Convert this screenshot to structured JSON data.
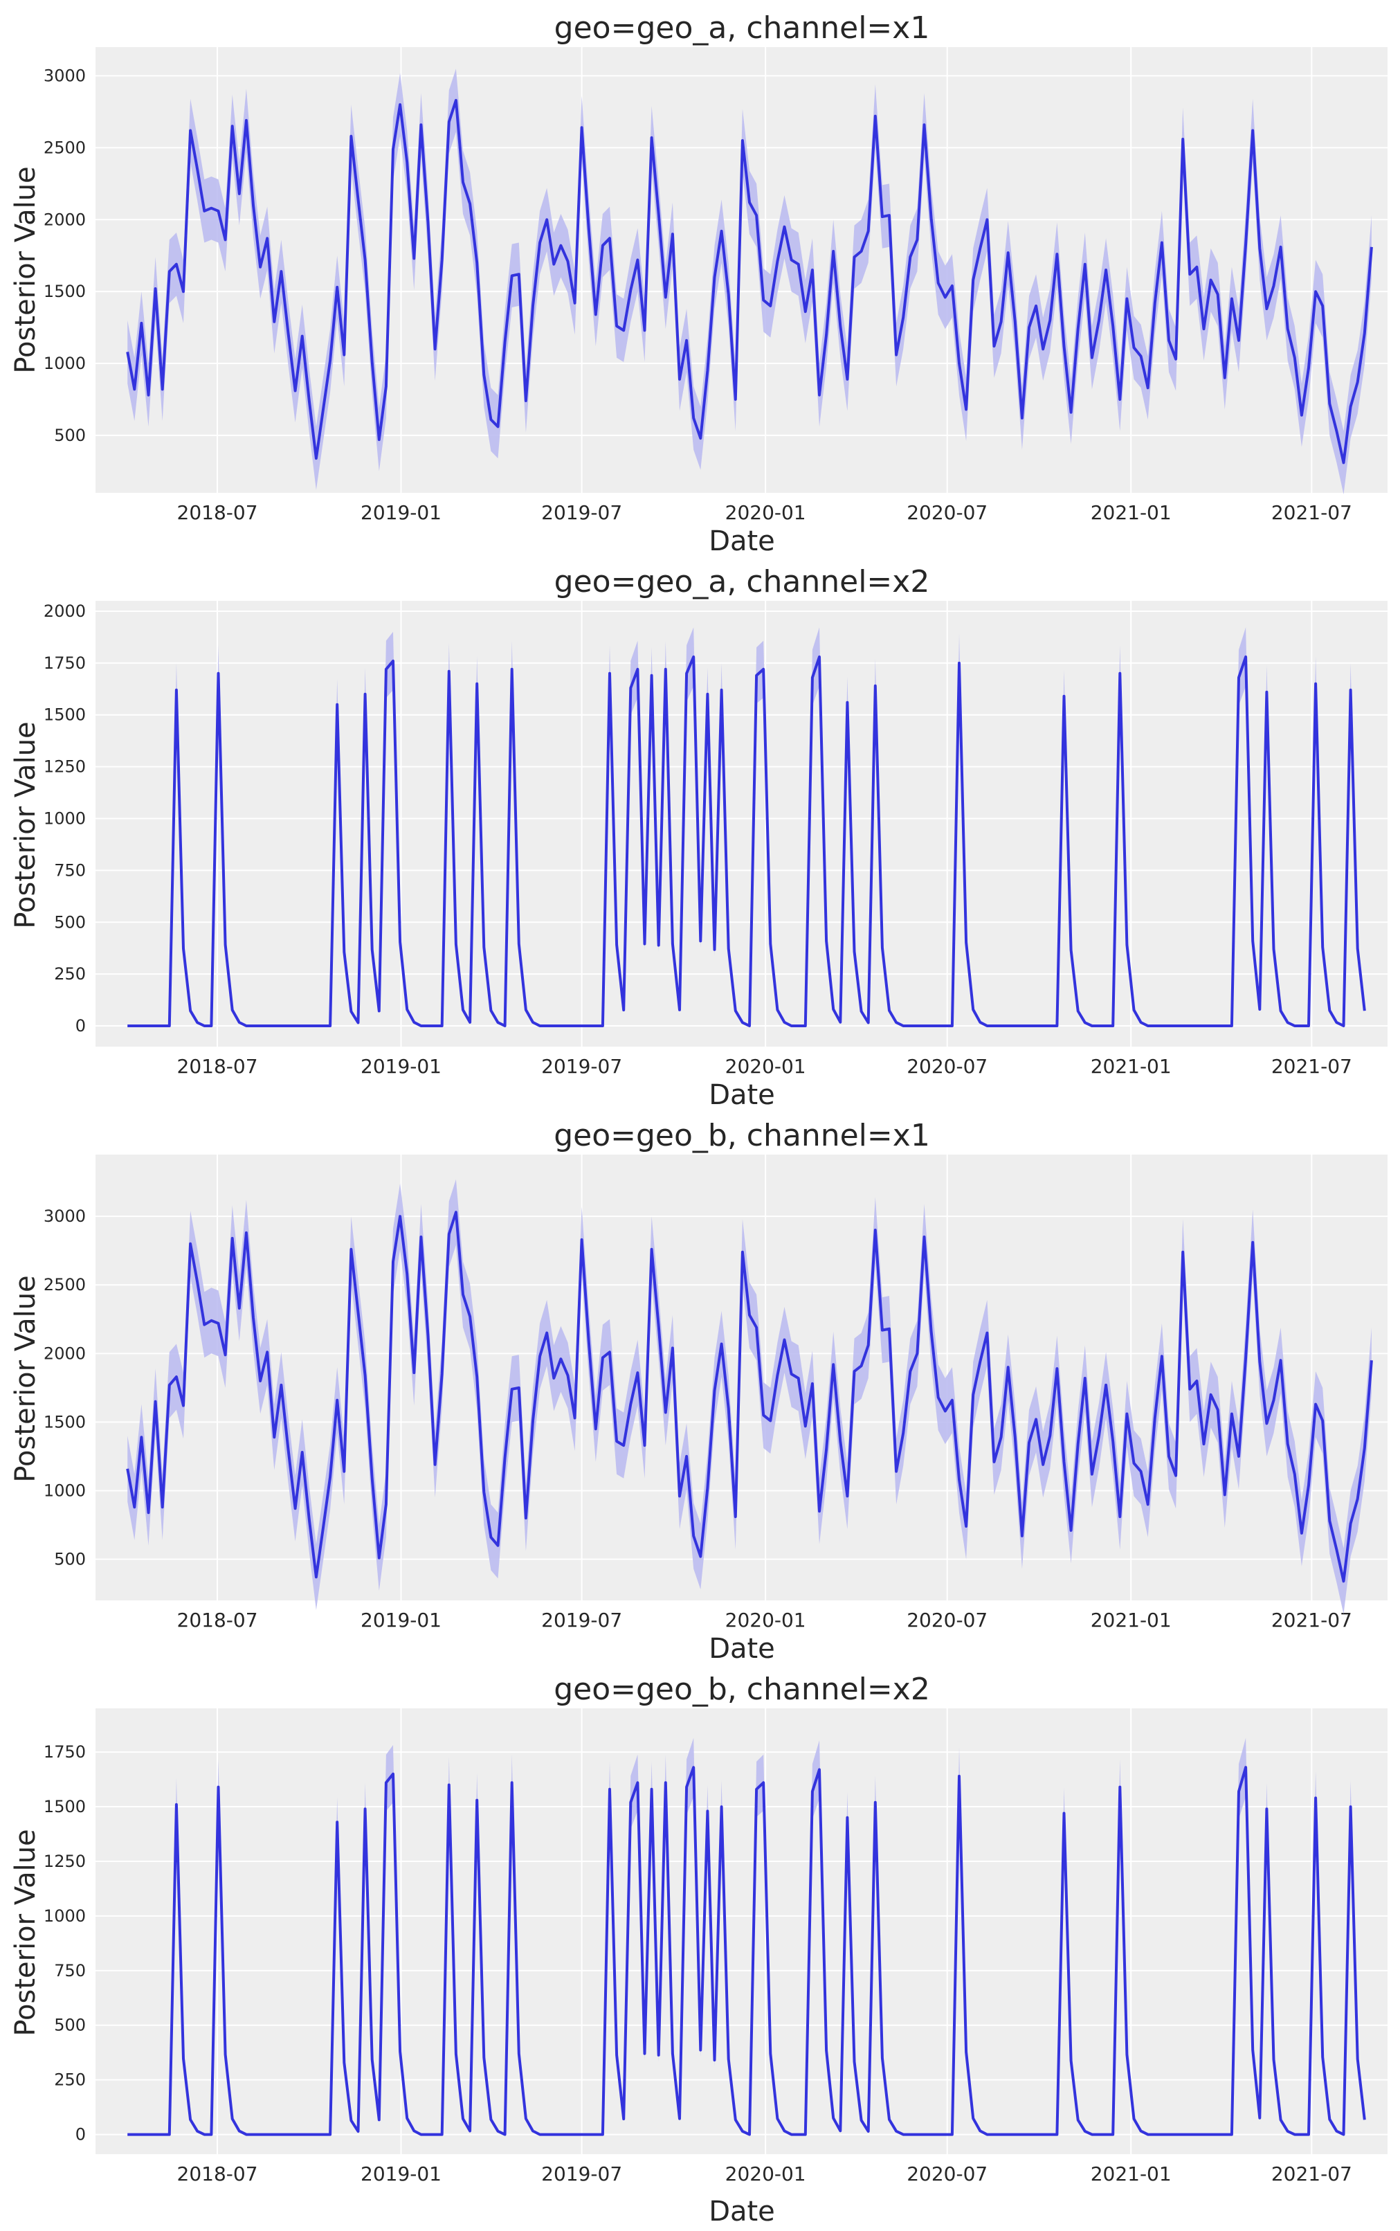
{
  "chart_data": [
    {
      "type": "line",
      "title": "geo=geo_a, channel=x1",
      "xlabel": "Date",
      "ylabel": "Posterior Value",
      "grid": true,
      "xlim": [
        "2018-03-01",
        "2021-09-15"
      ],
      "ylim": [
        100,
        3200
      ],
      "x_ticks": [
        "2018-07",
        "2019-01",
        "2019-07",
        "2020-01",
        "2020-07",
        "2021-01",
        "2021-07"
      ],
      "y_ticks": [
        500,
        1000,
        1500,
        2000,
        2500,
        3000
      ],
      "band_width": 220,
      "series": [
        {
          "start": "2018-04-02",
          "step_days": 7,
          "color": "#3333dd",
          "values": [
            1080,
            820,
            1280,
            780,
            1520,
            820,
            1640,
            1690,
            1500,
            2620,
            2350,
            2060,
            2080,
            2060,
            1860,
            2650,
            2180,
            2690,
            2100,
            1670,
            1870,
            1290,
            1640,
            1210,
            810,
            1190,
            740,
            340,
            680,
            1020,
            1530,
            1060,
            2580,
            2140,
            1720,
            1010,
            470,
            840,
            2490,
            2800,
            2400,
            1730,
            2660,
            1980,
            1100,
            1720,
            2680,
            2830,
            2260,
            2110,
            1700,
            920,
            610,
            560,
            1150,
            1610,
            1620,
            740,
            1400,
            1840,
            2000,
            1690,
            1820,
            1710,
            1420,
            2640,
            1940,
            1340,
            1820,
            1870,
            1260,
            1230,
            1510,
            1720,
            1230,
            2570,
            2040,
            1460,
            1900,
            890,
            1160,
            620,
            480,
            950,
            1600,
            1920,
            1480,
            750,
            2550,
            2120,
            2030,
            1440,
            1400,
            1710,
            1950,
            1720,
            1690,
            1360,
            1650,
            780,
            1200,
            1780,
            1260,
            890,
            1740,
            1780,
            1920,
            2720,
            2020,
            2030,
            1060,
            1320,
            1740,
            1860,
            2660,
            2010,
            1560,
            1460,
            1540,
            1000,
            680,
            1580,
            1800,
            2000,
            1120,
            1290,
            1770,
            1290,
            620,
            1250,
            1400,
            1100,
            1300,
            1760,
            1120,
            660,
            1240,
            1690,
            1040,
            1300,
            1650,
            1260,
            750,
            1450,
            1110,
            1050,
            830,
            1420,
            1840,
            1160,
            1030,
            2560,
            1620,
            1670,
            1240,
            1580,
            1480,
            900,
            1450,
            1160,
            1830,
            2620,
            1800,
            1380,
            1540,
            1810,
            1240,
            1040,
            640,
            970,
            1500,
            1400,
            720,
            530,
            310,
            700,
            870,
            1210,
            1810
          ]
        }
      ]
    },
    {
      "type": "line",
      "title": "geo=geo_a, channel=x2",
      "xlabel": "Date",
      "ylabel": "Posterior Value",
      "grid": true,
      "xlim": [
        "2018-03-01",
        "2021-09-15"
      ],
      "ylim": [
        -100,
        2050
      ],
      "x_ticks": [
        "2018-07",
        "2019-01",
        "2019-07",
        "2020-01",
        "2020-07",
        "2021-01",
        "2021-07"
      ],
      "y_ticks": [
        0,
        250,
        500,
        750,
        1000,
        1250,
        1500,
        1750,
        2000
      ],
      "spikes": {
        "start": "2018-04-02",
        "step_days": 7,
        "color": "#3333dd",
        "band_frac": 0.08,
        "decay": [
          0.23,
          0.045,
          0.01
        ],
        "weeks": [
          7,
          13,
          30,
          34,
          37,
          38,
          46,
          50,
          55,
          69,
          72,
          73,
          75,
          77,
          80,
          81,
          83,
          85,
          90,
          91,
          98,
          99,
          103,
          107,
          119,
          134,
          142,
          159,
          160,
          163,
          170,
          175
        ],
        "peaks": [
          1620,
          1700,
          1550,
          1600,
          1720,
          1760,
          1710,
          1650,
          1720,
          1700,
          1630,
          1720,
          1690,
          1720,
          1700,
          1780,
          1600,
          1620,
          1690,
          1720,
          1680,
          1780,
          1560,
          1640,
          1750,
          1590,
          1700,
          1680,
          1780,
          1610,
          1650,
          1620
        ]
      }
    },
    {
      "type": "line",
      "title": "geo=geo_b, channel=x1",
      "xlabel": "Date",
      "ylabel": "Posterior Value",
      "grid": true,
      "xlim": [
        "2018-03-01",
        "2021-09-15"
      ],
      "ylim": [
        200,
        3450
      ],
      "x_ticks": [
        "2018-07",
        "2019-01",
        "2019-07",
        "2020-01",
        "2020-07",
        "2021-01",
        "2021-07"
      ],
      "y_ticks": [
        500,
        1000,
        1500,
        2000,
        2500,
        3000
      ],
      "band_width": 240,
      "series": [
        {
          "start": "2018-04-02",
          "step_days": 7,
          "color": "#3333dd",
          "values": [
            1160,
            880,
            1390,
            840,
            1650,
            880,
            1770,
            1830,
            1620,
            2800,
            2520,
            2210,
            2240,
            2220,
            1990,
            2840,
            2330,
            2880,
            2260,
            1800,
            2010,
            1390,
            1770,
            1300,
            870,
            1280,
            790,
            370,
            730,
            1100,
            1660,
            1140,
            2760,
            2300,
            1840,
            1090,
            510,
            900,
            2670,
            3000,
            2580,
            1860,
            2850,
            2130,
            1190,
            1850,
            2870,
            3030,
            2430,
            2270,
            1830,
            990,
            660,
            600,
            1240,
            1740,
            1750,
            800,
            1510,
            1980,
            2150,
            1820,
            1960,
            1840,
            1530,
            2830,
            2090,
            1450,
            1970,
            2010,
            1360,
            1330,
            1630,
            1860,
            1330,
            2760,
            2200,
            1570,
            2040,
            960,
            1250,
            670,
            520,
            1020,
            1730,
            2070,
            1600,
            810,
            2740,
            2280,
            2190,
            1550,
            1510,
            1840,
            2100,
            1850,
            1820,
            1470,
            1780,
            850,
            1300,
            1920,
            1360,
            960,
            1870,
            1910,
            2060,
            2900,
            2170,
            2180,
            1140,
            1420,
            1870,
            2000,
            2850,
            2160,
            1680,
            1580,
            1660,
            1080,
            740,
            1700,
            1940,
            2150,
            1210,
            1390,
            1900,
            1390,
            670,
            1350,
            1520,
            1190,
            1400,
            1890,
            1210,
            710,
            1340,
            1820,
            1120,
            1400,
            1770,
            1360,
            810,
            1560,
            1200,
            1140,
            900,
            1530,
            1980,
            1250,
            1110,
            2740,
            1740,
            1800,
            1340,
            1700,
            1590,
            970,
            1560,
            1250,
            1970,
            2810,
            1940,
            1490,
            1660,
            1950,
            1340,
            1120,
            690,
            1040,
            1630,
            1510,
            780,
            570,
            340,
            760,
            940,
            1310,
            1950
          ]
        }
      ]
    },
    {
      "type": "line",
      "title": "geo=geo_b, channel=x2",
      "xlabel": "Date",
      "ylabel": "Posterior Value",
      "grid": true,
      "xlim": [
        "2018-03-01",
        "2021-09-15"
      ],
      "ylim": [
        -90,
        1950
      ],
      "x_ticks": [
        "2018-07",
        "2019-01",
        "2019-07",
        "2020-01",
        "2020-07",
        "2021-01",
        "2021-07"
      ],
      "y_ticks": [
        0,
        250,
        500,
        750,
        1000,
        1250,
        1500,
        1750
      ],
      "spikes": {
        "start": "2018-04-02",
        "step_days": 7,
        "color": "#3333dd",
        "band_frac": 0.08,
        "decay": [
          0.23,
          0.045,
          0.01
        ],
        "weeks": [
          7,
          13,
          30,
          34,
          37,
          38,
          46,
          50,
          55,
          69,
          72,
          73,
          75,
          77,
          80,
          81,
          83,
          85,
          90,
          91,
          98,
          99,
          103,
          107,
          119,
          134,
          142,
          159,
          160,
          163,
          170,
          175
        ],
        "peaks": [
          1510,
          1590,
          1430,
          1490,
          1610,
          1650,
          1600,
          1530,
          1610,
          1580,
          1520,
          1610,
          1580,
          1610,
          1590,
          1680,
          1480,
          1500,
          1580,
          1610,
          1570,
          1670,
          1450,
          1520,
          1640,
          1470,
          1590,
          1570,
          1680,
          1490,
          1540,
          1500
        ]
      }
    }
  ]
}
